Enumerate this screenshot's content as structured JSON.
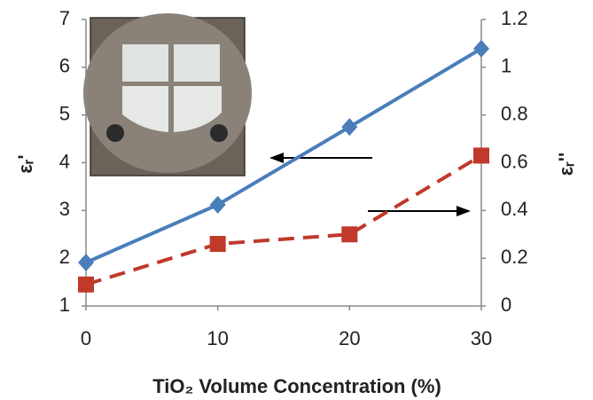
{
  "chart_data": {
    "type": "line",
    "x": [
      0,
      10,
      20,
      30
    ],
    "xlim": [
      0,
      30
    ],
    "xticks": [
      0,
      10,
      20,
      30
    ],
    "ylim": [
      1,
      7
    ],
    "yticks": [
      1,
      2,
      3,
      4,
      5,
      6,
      7
    ],
    "y2lim": [
      0,
      1.2
    ],
    "y2ticks": [
      0,
      0.2,
      0.4,
      0.6,
      0.8,
      1,
      1.2
    ],
    "xlabel": "TiO₂ Volume Concentration (%)",
    "ylabel": "εᵣ'",
    "y2label": "εᵣ''",
    "series": [
      {
        "color": "#4a7ebb",
        "marker": "diamond",
        "dash": false,
        "values": [
          1.91,
          3.12,
          4.75,
          6.39
        ]
      },
      {
        "color": "#c0392b",
        "marker": "square",
        "dash": true,
        "axis": "y2",
        "values": [
          0.09,
          0.26,
          0.3,
          0.63
        ]
      }
    ]
  }
}
